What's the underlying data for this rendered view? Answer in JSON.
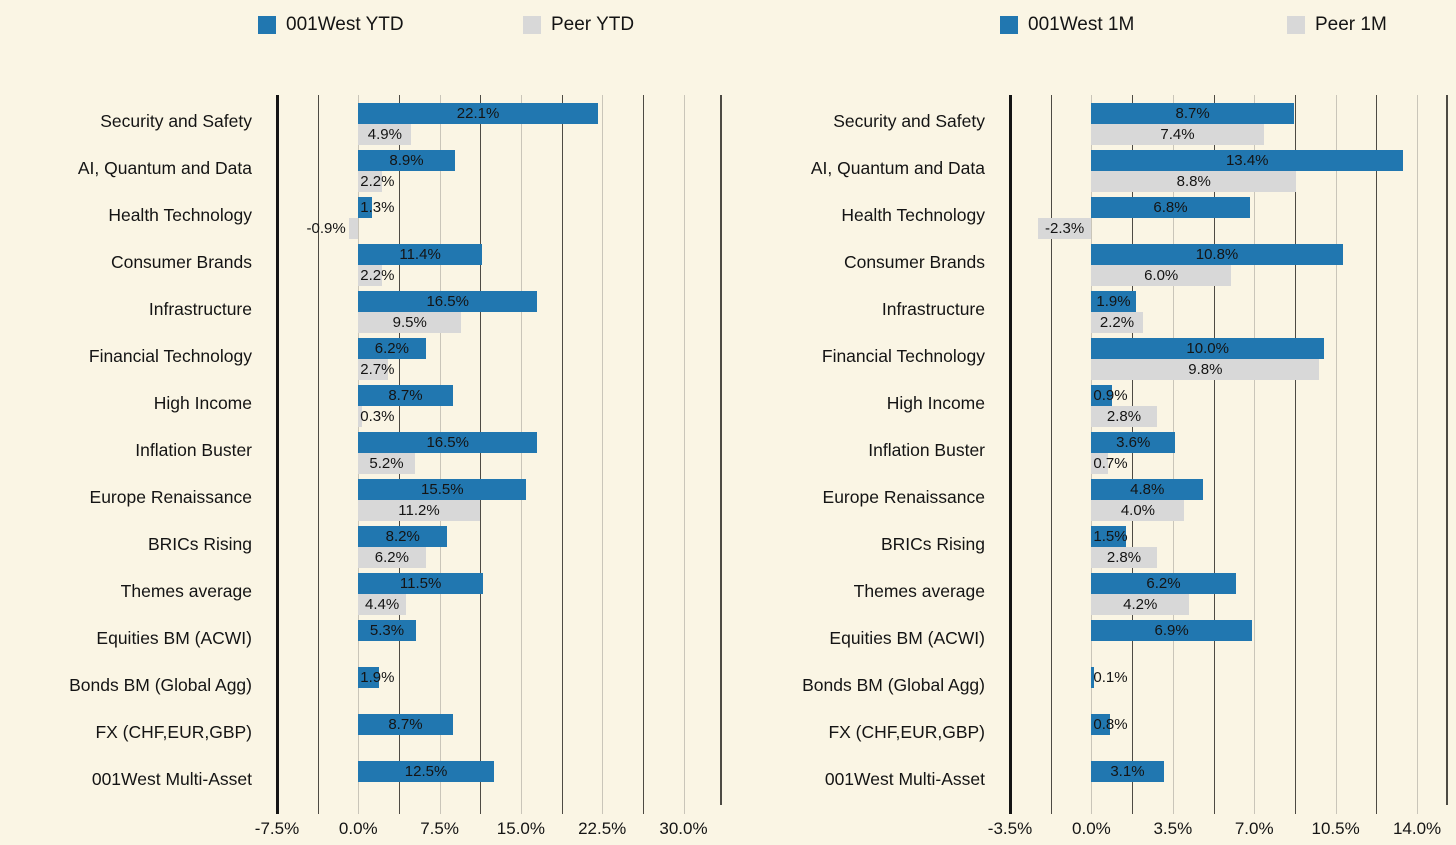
{
  "colors": {
    "background": "#FAF5E4",
    "primary": "#2177B0",
    "peer": "#D8D8D8",
    "text": "#141414",
    "grid_minor": "#4D4A43",
    "grid_major": "#C9C5B9",
    "axis": "#141414"
  },
  "legend": [
    [
      {
        "label": "001West YTD",
        "swatch": "primary"
      },
      {
        "label": "Peer YTD",
        "swatch": "peer"
      }
    ],
    [
      {
        "label": "001West 1M",
        "swatch": "primary"
      },
      {
        "label": "Peer 1M",
        "swatch": "peer"
      }
    ]
  ],
  "chart_data": [
    {
      "id": "chart-ytd",
      "type": "bar",
      "orientation": "horizontal",
      "title": "",
      "xlabel": "",
      "ylabel": "",
      "grid": true,
      "legend_position": "top",
      "categories": [
        "Security and Safety",
        "AI, Quantum and Data",
        "Health Technology",
        "Consumer Brands",
        "Infrastructure",
        "Financial Technology",
        "High Income",
        "Inflation Buster",
        "Europe Renaissance",
        "BRICs Rising",
        "Themes average",
        "Equities BM (ACWI)",
        "Bonds BM (Global Agg)",
        "FX (CHF,EUR,GBP)",
        "001West Multi-Asset"
      ],
      "series": [
        {
          "name": "001West YTD",
          "color": "primary",
          "values": [
            22.1,
            8.9,
            1.3,
            11.4,
            16.5,
            6.2,
            8.7,
            16.5,
            15.5,
            8.2,
            11.5,
            5.3,
            1.9,
            8.7,
            12.5
          ]
        },
        {
          "name": "Peer YTD",
          "color": "peer",
          "values": [
            4.9,
            2.2,
            -0.9,
            2.2,
            9.5,
            2.7,
            0.3,
            5.2,
            11.2,
            6.2,
            4.4,
            null,
            null,
            null,
            null
          ]
        }
      ],
      "xlim": [
        -7.5,
        33.55
      ],
      "minor_step": 3.75,
      "ticks": [
        {
          "v": -7.5,
          "label": "-7.5%"
        },
        {
          "v": 0,
          "label": "0.0%"
        },
        {
          "v": 7.5,
          "label": "7.5%"
        },
        {
          "v": 15,
          "label": "15.0%"
        },
        {
          "v": 22.5,
          "label": "22.5%"
        },
        {
          "v": 30,
          "label": "30.0%"
        }
      ]
    },
    {
      "id": "chart-1m",
      "type": "bar",
      "orientation": "horizontal",
      "title": "",
      "xlabel": "",
      "ylabel": "",
      "grid": true,
      "legend_position": "top",
      "categories": [
        "Security and Safety",
        "AI, Quantum and Data",
        "Health Technology",
        "Consumer Brands",
        "Infrastructure",
        "Financial Technology",
        "High Income",
        "Inflation Buster",
        "Europe Renaissance",
        "BRICs Rising",
        "Themes average",
        "Equities BM (ACWI)",
        "Bonds BM (Global Agg)",
        "FX (CHF,EUR,GBP)",
        "001West Multi-Asset"
      ],
      "series": [
        {
          "name": "001West 1M",
          "color": "primary",
          "values": [
            8.7,
            13.4,
            6.8,
            10.8,
            1.9,
            10.0,
            0.9,
            3.6,
            4.8,
            1.5,
            6.2,
            6.9,
            0.1,
            0.8,
            3.1
          ]
        },
        {
          "name": "Peer 1M",
          "color": "peer",
          "values": [
            7.4,
            8.8,
            -2.3,
            6.0,
            2.2,
            9.8,
            2.8,
            0.7,
            4.0,
            2.8,
            4.2,
            null,
            null,
            null,
            null
          ]
        }
      ],
      "xlim": [
        -3.5,
        15.33
      ],
      "minor_step": 1.75,
      "ticks": [
        {
          "v": -3.5,
          "label": "-3.5%"
        },
        {
          "v": 0,
          "label": "0.0%"
        },
        {
          "v": 3.5,
          "label": "3.5%"
        },
        {
          "v": 7,
          "label": "7.0%"
        },
        {
          "v": 10.5,
          "label": "10.5%"
        },
        {
          "v": 14,
          "label": "14.0%"
        }
      ]
    }
  ]
}
